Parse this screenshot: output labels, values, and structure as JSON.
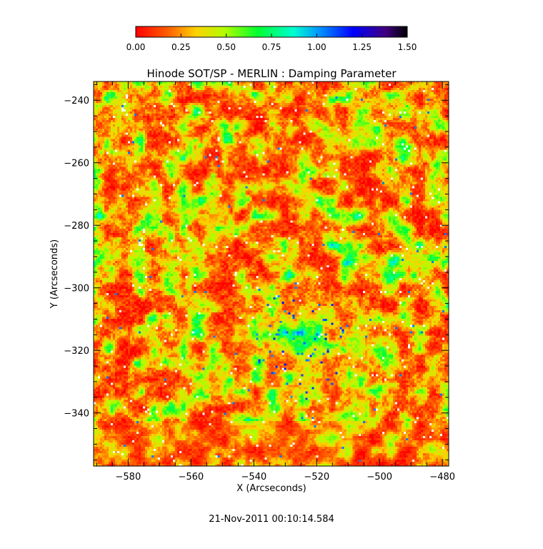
{
  "chart_data": {
    "type": "heatmap",
    "title": "Hinode SOT/SP - MERLIN : Damping Parameter",
    "xlabel": "X (Arcseconds)",
    "ylabel": "Y (Arcseconds)",
    "xlim": [
      -591,
      -478
    ],
    "ylim": [
      -357,
      -234
    ],
    "x_ticks": [
      -580,
      -560,
      -540,
      -520,
      -500,
      -480
    ],
    "y_ticks": [
      -240,
      -260,
      -280,
      -300,
      -320,
      -340
    ],
    "x_tick_labels": [
      "−580",
      "−560",
      "−540",
      "−520",
      "−500",
      "−480"
    ],
    "y_tick_labels": [
      "−240",
      "−260",
      "−280",
      "−300",
      "−320",
      "−340"
    ],
    "colorbar": {
      "range": [
        0.0,
        1.5
      ],
      "ticks": [
        0.0,
        0.25,
        0.5,
        0.75,
        1.0,
        1.25,
        1.5
      ],
      "tick_labels": [
        "0.00",
        "0.25",
        "0.50",
        "0.75",
        "1.00",
        "1.25",
        "1.50"
      ],
      "placement": "top",
      "colormap": "rainbow (red → yellow → green → cyan → blue → black)"
    },
    "value_distribution": "mostly 0.00–0.50 (red/orange/yellow), patches 0.50–0.75 (green), sparse 1.00–1.25 (blue) near (-525, -318) and (-510, -268)",
    "timestamp": "21-Nov-2011 00:10:14.584"
  },
  "colors": {
    "background": "#ffffff",
    "axes": "#000000"
  }
}
